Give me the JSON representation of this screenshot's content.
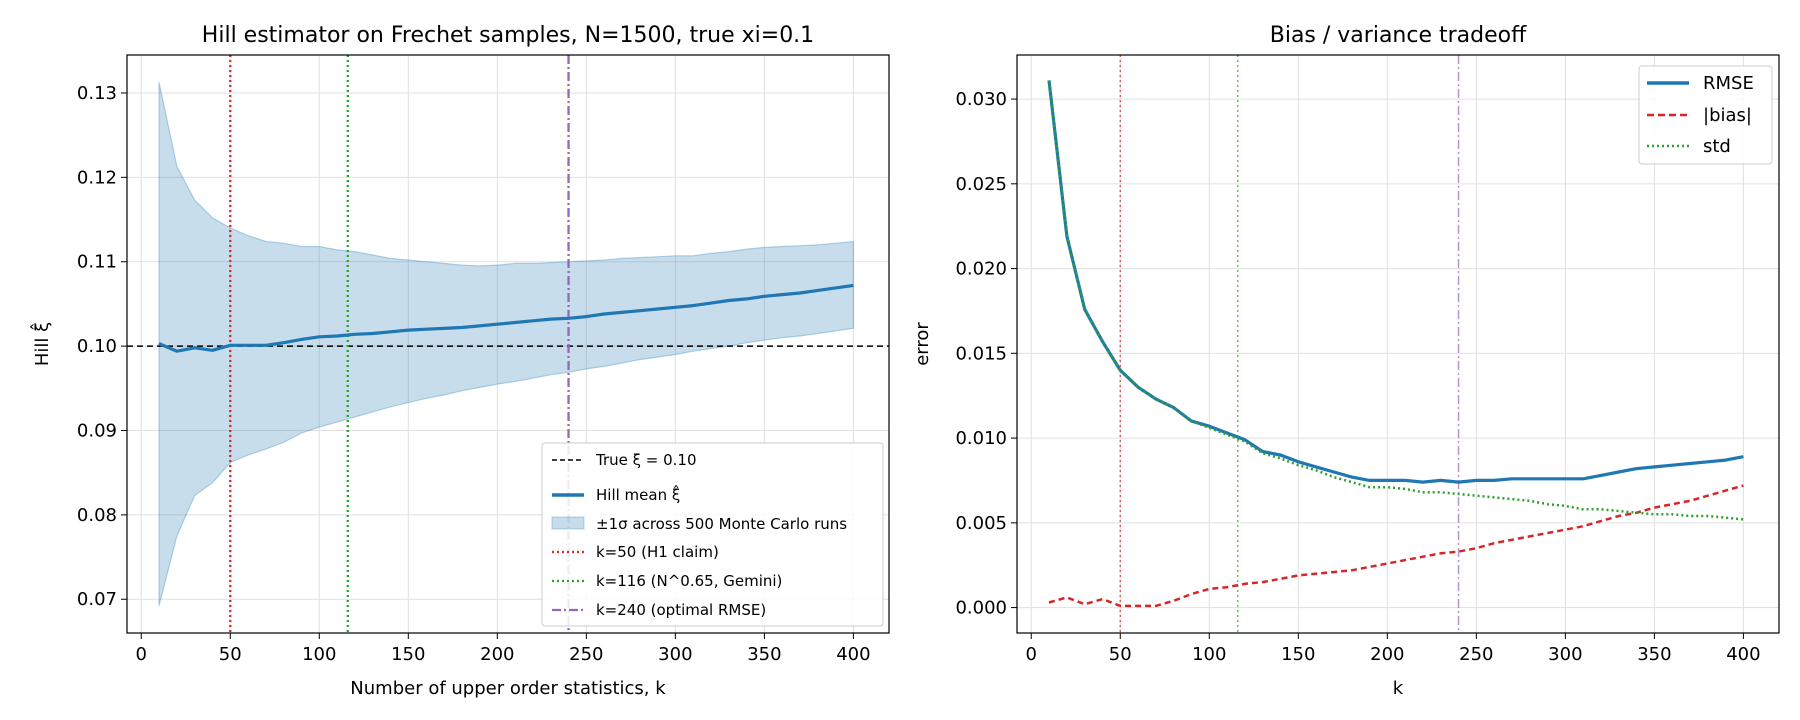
{
  "chart_data": [
    {
      "type": "line",
      "title": "Hill estimator on Frechet samples, N=1500, true xi=0.1",
      "xlabel": "Number of upper order statistics, k",
      "ylabel": "Hill ξ̂",
      "xlim": [
        -8,
        420
      ],
      "ylim": [
        0.066,
        0.1345
      ],
      "xticks": [
        0,
        50,
        100,
        150,
        200,
        250,
        300,
        350,
        400
      ],
      "yticks": [
        0.07,
        0.08,
        0.09,
        0.1,
        0.11,
        0.12,
        0.13
      ],
      "ytick_labels": [
        "0.07",
        "0.08",
        "0.09",
        "0.10",
        "0.11",
        "0.12",
        "0.13"
      ],
      "grid": true,
      "legend_position": "lower right",
      "x": [
        10,
        20,
        30,
        40,
        50,
        60,
        70,
        80,
        90,
        100,
        110,
        120,
        130,
        140,
        150,
        160,
        170,
        180,
        190,
        200,
        210,
        220,
        230,
        240,
        250,
        260,
        270,
        280,
        290,
        300,
        310,
        320,
        330,
        340,
        350,
        360,
        370,
        380,
        390,
        400
      ],
      "series": [
        {
          "name": "Hill mean ξ̂",
          "color": "#1f77b4",
          "values": [
            0.1003,
            0.0994,
            0.0998,
            0.0995,
            0.1001,
            0.1001,
            0.1001,
            0.1004,
            0.1008,
            0.1011,
            0.1012,
            0.1014,
            0.1015,
            0.1017,
            0.1019,
            0.102,
            0.1021,
            0.1022,
            0.1024,
            0.1026,
            0.1028,
            0.103,
            0.1032,
            0.1033,
            0.1035,
            0.1038,
            0.104,
            0.1042,
            0.1044,
            0.1046,
            0.1048,
            0.1051,
            0.1054,
            0.1056,
            0.1059,
            0.1061,
            0.1063,
            0.1066,
            0.1069,
            0.1072
          ],
          "band_label": "±1σ across 500 Monte Carlo runs",
          "band_color": "#1f77b4",
          "lower": [
            0.0692,
            0.0775,
            0.0823,
            0.0838,
            0.0862,
            0.0871,
            0.0878,
            0.0886,
            0.0897,
            0.0904,
            0.091,
            0.0916,
            0.0922,
            0.0928,
            0.0933,
            0.0938,
            0.0942,
            0.0947,
            0.0951,
            0.0955,
            0.0958,
            0.0962,
            0.0966,
            0.0969,
            0.0973,
            0.0976,
            0.098,
            0.0984,
            0.0987,
            0.099,
            0.0994,
            0.0997,
            0.1,
            0.1004,
            0.1007,
            0.101,
            0.1012,
            0.1015,
            0.1018,
            0.1021
          ],
          "upper": [
            0.1313,
            0.1213,
            0.1173,
            0.1152,
            0.114,
            0.1131,
            0.1124,
            0.1122,
            0.1118,
            0.1118,
            0.1114,
            0.1112,
            0.1108,
            0.1104,
            0.1102,
            0.11,
            0.1098,
            0.1096,
            0.1095,
            0.1096,
            0.1098,
            0.1098,
            0.1099,
            0.11,
            0.1101,
            0.1102,
            0.1104,
            0.1105,
            0.1106,
            0.1107,
            0.1107,
            0.111,
            0.1112,
            0.1115,
            0.1117,
            0.1118,
            0.1119,
            0.112,
            0.1122,
            0.1124
          ]
        }
      ],
      "hlines": [
        {
          "y": 0.1,
          "color": "#000000",
          "style": "dashed",
          "label": "True ξ = 0.10"
        }
      ],
      "vlines": [
        {
          "x": 50,
          "color": "#d62728",
          "style": "dotted",
          "label": "k=50 (H1 claim)"
        },
        {
          "x": 116,
          "color": "#2ca02c",
          "style": "dotted",
          "label": "k=116 (N^0.65, Gemini)"
        },
        {
          "x": 240,
          "color": "#9467bd",
          "style": "dashdot",
          "label": "k=240 (optimal RMSE)"
        }
      ]
    },
    {
      "type": "line",
      "title": "Bias / variance tradeoff",
      "xlabel": "k",
      "ylabel": "error",
      "xlim": [
        -8,
        420
      ],
      "ylim": [
        -0.0015,
        0.0326
      ],
      "xticks": [
        0,
        50,
        100,
        150,
        200,
        250,
        300,
        350,
        400
      ],
      "yticks": [
        0.0,
        0.005,
        0.01,
        0.015,
        0.02,
        0.025,
        0.03
      ],
      "ytick_labels": [
        "0.000",
        "0.005",
        "0.010",
        "0.015",
        "0.020",
        "0.025",
        "0.030"
      ],
      "grid": true,
      "legend_position": "upper right",
      "x": [
        10,
        20,
        30,
        40,
        50,
        60,
        70,
        80,
        90,
        100,
        110,
        120,
        130,
        140,
        150,
        160,
        170,
        180,
        190,
        200,
        210,
        220,
        230,
        240,
        250,
        260,
        270,
        280,
        290,
        300,
        310,
        320,
        330,
        340,
        350,
        360,
        370,
        380,
        390,
        400
      ],
      "series": [
        {
          "name": "RMSE",
          "color": "#1f77b4",
          "style": "solid",
          "values": [
            0.0311,
            0.0219,
            0.0176,
            0.0157,
            0.014,
            0.013,
            0.0123,
            0.0118,
            0.011,
            0.0107,
            0.0103,
            0.0099,
            0.0092,
            0.009,
            0.0086,
            0.0083,
            0.008,
            0.0077,
            0.0075,
            0.0075,
            0.0075,
            0.0074,
            0.0075,
            0.0074,
            0.0075,
            0.0075,
            0.0076,
            0.0076,
            0.0076,
            0.0076,
            0.0076,
            0.0078,
            0.008,
            0.0082,
            0.0083,
            0.0084,
            0.0085,
            0.0086,
            0.0087,
            0.0089
          ]
        },
        {
          "name": "|bias|",
          "color": "#d62728",
          "style": "dashed",
          "values": [
            0.0003,
            0.0006,
            0.0002,
            0.0005,
            0.0001,
            0.0001,
            0.0001,
            0.0004,
            0.0008,
            0.0011,
            0.0012,
            0.0014,
            0.0015,
            0.0017,
            0.0019,
            0.002,
            0.0021,
            0.0022,
            0.0024,
            0.0026,
            0.0028,
            0.003,
            0.0032,
            0.0033,
            0.0035,
            0.0038,
            0.004,
            0.0042,
            0.0044,
            0.0046,
            0.0048,
            0.0051,
            0.0054,
            0.0056,
            0.0059,
            0.0061,
            0.0063,
            0.0066,
            0.0069,
            0.0072
          ]
        },
        {
          "name": "std",
          "color": "#2ca02c",
          "style": "dotted",
          "values": [
            0.0311,
            0.0219,
            0.0176,
            0.0157,
            0.014,
            0.013,
            0.0123,
            0.0118,
            0.011,
            0.0106,
            0.0102,
            0.0098,
            0.0091,
            0.0088,
            0.0084,
            0.0081,
            0.0077,
            0.0074,
            0.0071,
            0.0071,
            0.007,
            0.0068,
            0.0068,
            0.0067,
            0.0066,
            0.0065,
            0.0064,
            0.0063,
            0.0061,
            0.006,
            0.0058,
            0.0058,
            0.0057,
            0.0056,
            0.0055,
            0.0055,
            0.0054,
            0.0054,
            0.0053,
            0.0052
          ]
        }
      ],
      "vlines": [
        {
          "x": 50,
          "color": "#d62728",
          "style": "dotted"
        },
        {
          "x": 116,
          "color": "#2ca02c",
          "style": "dotted"
        },
        {
          "x": 240,
          "color": "#9467bd",
          "style": "dashdot"
        }
      ]
    }
  ]
}
